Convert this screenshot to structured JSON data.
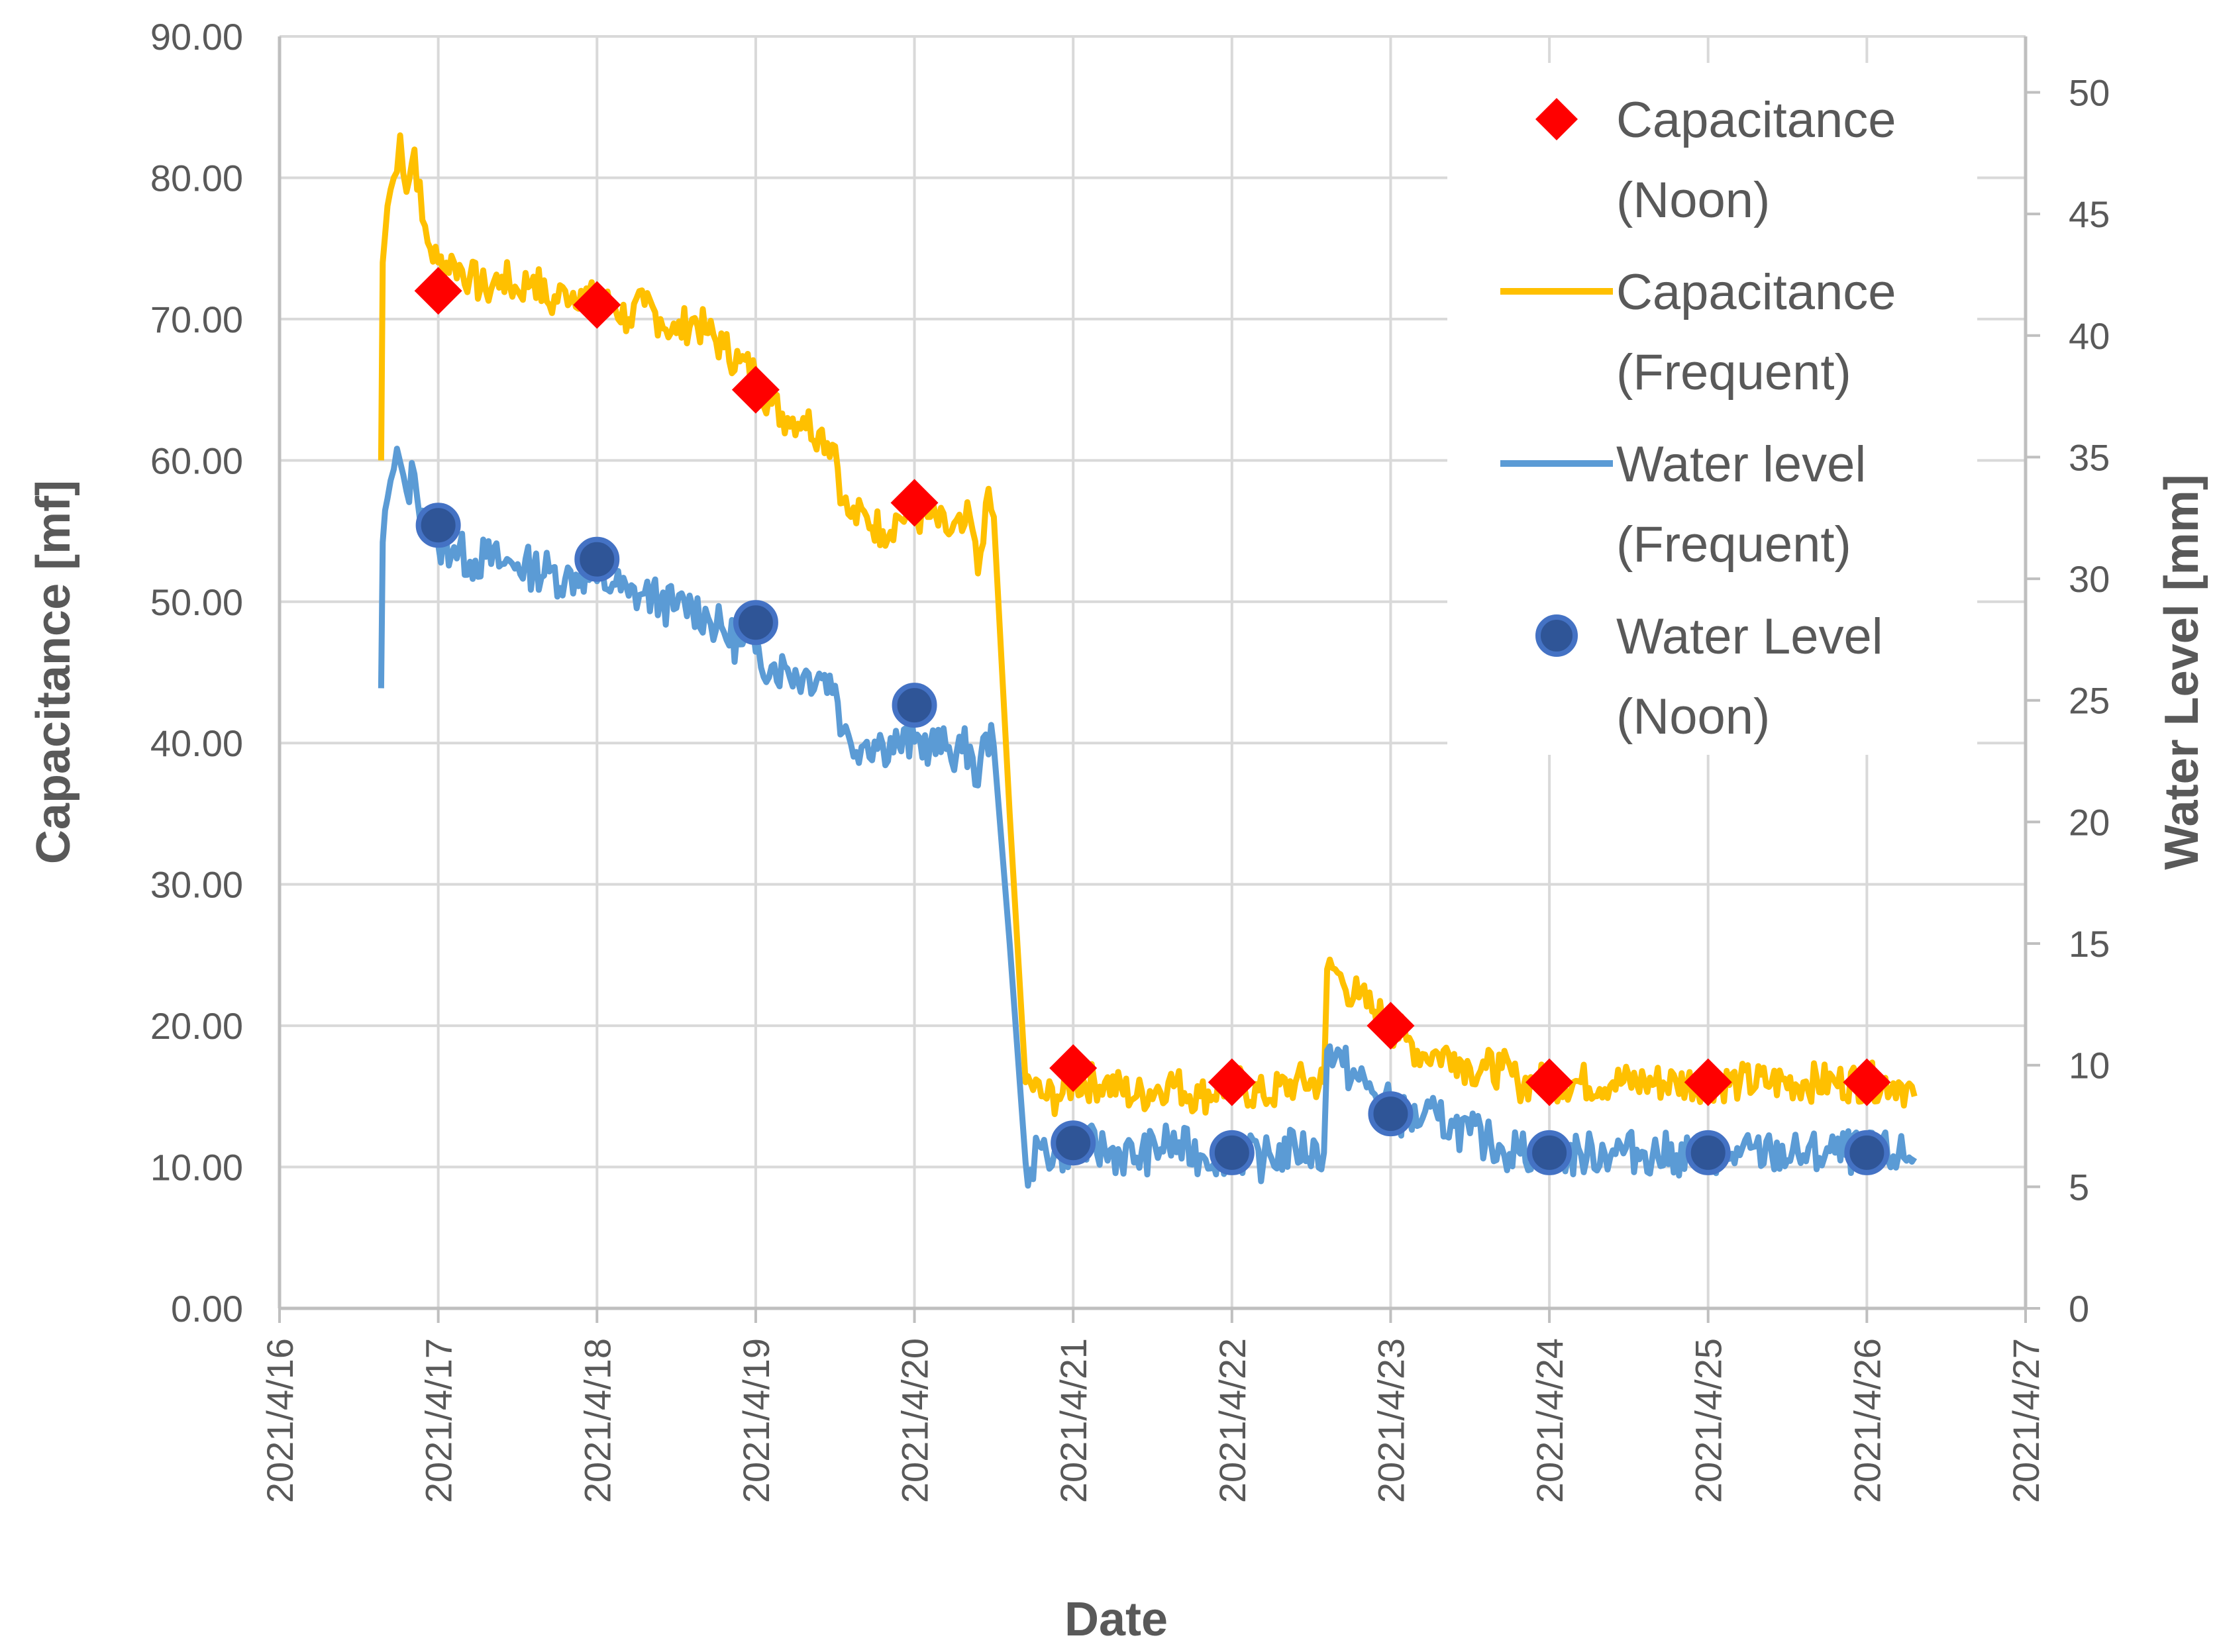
{
  "chart_data": {
    "type": "line",
    "xlabel": "Date",
    "ylabel": "Capacitance [mf]",
    "y2label": "Water Level [mm]",
    "xlim": [
      0,
      11
    ],
    "ylim": [
      0,
      90
    ],
    "y2lim": [
      0,
      52.3
    ],
    "x_ticks": [
      "2021/4/16",
      "2021/4/17",
      "2021/4/18",
      "2021/4/19",
      "2021/4/20",
      "2021/4/21",
      "2021/4/22",
      "2021/4/23",
      "2021/4/24",
      "2021/4/25",
      "2021/4/26",
      "2021/4/27"
    ],
    "y_ticks": [
      "0.00",
      "10.00",
      "20.00",
      "30.00",
      "40.00",
      "50.00",
      "60.00",
      "70.00",
      "80.00",
      "90.00"
    ],
    "y2_ticks": [
      "0",
      "5",
      "10",
      "15",
      "20",
      "25",
      "30",
      "35",
      "40",
      "45",
      "50"
    ],
    "y2_tick_values": [
      0,
      5,
      10,
      15,
      20,
      25,
      30,
      35,
      40,
      45,
      50
    ],
    "grid": true,
    "legend_position": "top-right",
    "colors": {
      "cap_noon": "#ff0000",
      "cap_freq": "#ffc000",
      "wl_freq": "#5b9bd5",
      "wl_noon": "#2f5597",
      "wl_noon_edge": "#4472c4",
      "grid": "#d9d9d9",
      "axis": "#bfbfbf"
    },
    "legend": [
      {
        "key": "cap_noon",
        "line1": "Capacitance",
        "line2": "(Noon)"
      },
      {
        "key": "cap_freq",
        "line1": "Capacitance",
        "line2": "(Frequent)"
      },
      {
        "key": "wl_freq",
        "line1": "Water level",
        "line2": "(Frequent)"
      },
      {
        "key": "wl_noon",
        "line1": "Water Level",
        "line2": "(Noon)"
      }
    ],
    "series": [
      {
        "name": "Capacitance (Noon)",
        "axis": "left",
        "marker": "diamond",
        "x": [
          1,
          2,
          3,
          4,
          5,
          6,
          7,
          8,
          9,
          10
        ],
        "y": [
          72,
          71,
          65,
          57,
          17,
          16,
          20,
          16,
          16,
          16
        ]
      },
      {
        "name": "Capacitance (Frequent)",
        "axis": "left",
        "style": "line",
        "x": [
          0.64,
          0.65,
          0.68,
          0.72,
          0.76,
          0.8,
          0.85,
          0.9,
          0.95,
          1.0,
          1.1,
          1.2,
          1.3,
          1.4,
          1.5,
          1.6,
          1.7,
          1.8,
          1.9,
          2.0,
          2.1,
          2.2,
          2.3,
          2.4,
          2.5,
          2.6,
          2.7,
          2.8,
          2.9,
          3.0,
          3.1,
          3.2,
          3.3,
          3.4,
          3.5,
          3.55,
          3.6,
          3.7,
          3.8,
          3.9,
          4.0,
          4.1,
          4.2,
          4.3,
          4.35,
          4.4,
          4.45,
          4.5,
          4.6,
          4.7,
          4.73,
          4.8,
          4.9,
          5.0,
          5.2,
          5.4,
          5.6,
          5.8,
          6.0,
          6.2,
          6.4,
          6.58,
          6.6,
          6.65,
          6.7,
          6.8,
          6.9,
          7.0,
          7.1,
          7.2,
          7.3,
          7.4,
          7.5,
          7.6,
          7.7,
          7.8,
          7.9,
          8.0,
          8.2,
          8.4,
          8.6,
          8.8,
          9.0,
          9.2,
          9.4,
          9.6,
          9.8,
          10.0,
          10.2,
          10.3
        ],
        "y": [
          60,
          74,
          78,
          80,
          83,
          79,
          82,
          77,
          75,
          74,
          74,
          73,
          72,
          73,
          72,
          73,
          71,
          72,
          72,
          71,
          71,
          70,
          71,
          70,
          69,
          70,
          69,
          68,
          67,
          66,
          64,
          63,
          63,
          62,
          61,
          57,
          56,
          56,
          55,
          56,
          56,
          56,
          55,
          55,
          56,
          52,
          57,
          56,
          35,
          16,
          16,
          15,
          15,
          16,
          16,
          15,
          16,
          15,
          16,
          15,
          16,
          16,
          24,
          24,
          23,
          22,
          21,
          20,
          19,
          18,
          18,
          18,
          17,
          17,
          17,
          16,
          16,
          16,
          16,
          16,
          16,
          16,
          16,
          16,
          16,
          16,
          16,
          16,
          16,
          15
        ]
      },
      {
        "name": "Water level (Frequent)",
        "axis": "right",
        "style": "line",
        "x": [
          0.64,
          0.65,
          0.68,
          0.72,
          0.76,
          0.8,
          0.85,
          0.9,
          0.95,
          1.0,
          1.1,
          1.2,
          1.3,
          1.4,
          1.5,
          1.6,
          1.7,
          1.8,
          1.9,
          2.0,
          2.1,
          2.2,
          2.3,
          2.4,
          2.5,
          2.6,
          2.7,
          2.8,
          2.9,
          3.0,
          3.1,
          3.2,
          3.3,
          3.4,
          3.5,
          3.55,
          3.6,
          3.7,
          3.8,
          3.9,
          4.0,
          4.1,
          4.2,
          4.3,
          4.35,
          4.4,
          4.45,
          4.5,
          4.6,
          4.7,
          4.73,
          4.8,
          4.9,
          5.0,
          5.2,
          5.4,
          5.6,
          5.8,
          6.0,
          6.2,
          6.4,
          6.58,
          6.6,
          6.65,
          6.7,
          6.8,
          6.9,
          7.0,
          7.1,
          7.2,
          7.3,
          7.4,
          7.5,
          7.6,
          7.7,
          7.8,
          7.9,
          8.0,
          8.2,
          8.4,
          8.6,
          8.8,
          9.0,
          9.2,
          9.4,
          9.6,
          9.8,
          10.0,
          10.2,
          10.3
        ],
        "y": [
          25.5,
          31.5,
          33.3,
          34.5,
          34.8,
          33.6,
          34.3,
          32.8,
          31.7,
          31.4,
          31.3,
          30.7,
          30.9,
          30.6,
          30.6,
          30.4,
          30.3,
          30.0,
          30.2,
          29.9,
          29.8,
          29.3,
          29.4,
          29.1,
          28.8,
          28.9,
          28.4,
          27.8,
          27.3,
          27.0,
          26.4,
          26.3,
          26.0,
          26.1,
          25.6,
          23.7,
          23.2,
          23.3,
          23.2,
          23.2,
          23.3,
          23.2,
          23.0,
          22.9,
          23.1,
          21.5,
          23.6,
          23.1,
          15.0,
          6.0,
          5.7,
          6.6,
          6.3,
          6.8,
          6.5,
          6.2,
          6.8,
          6.3,
          6.4,
          6.1,
          6.6,
          6.4,
          10.6,
          10.3,
          10.0,
          9.4,
          8.8,
          8.3,
          7.8,
          7.8,
          7.8,
          7.5,
          7.2,
          6.9,
          6.6,
          6.5,
          6.4,
          6.4,
          6.3,
          6.5,
          6.4,
          6.3,
          6.4,
          6.3,
          6.4,
          6.3,
          6.4,
          6.4,
          6.3,
          6.2
        ]
      },
      {
        "name": "Water Level (Noon)",
        "axis": "right",
        "marker": "circle",
        "x": [
          1,
          2,
          3,
          4,
          5,
          6,
          7,
          8,
          9,
          10
        ],
        "y": [
          32.2,
          30.8,
          28.2,
          24.8,
          6.8,
          6.4,
          8.0,
          6.4,
          6.4,
          6.4
        ]
      }
    ]
  }
}
